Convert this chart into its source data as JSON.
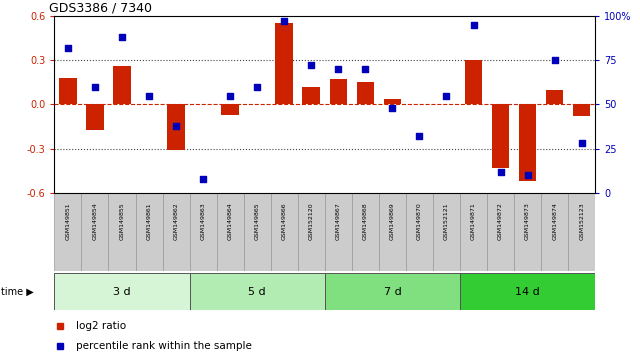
{
  "title": "GDS3386 / 7340",
  "samples": [
    "GSM149851",
    "GSM149854",
    "GSM149855",
    "GSM149861",
    "GSM149862",
    "GSM149863",
    "GSM149864",
    "GSM149865",
    "GSM149866",
    "GSM152120",
    "GSM149867",
    "GSM149868",
    "GSM149869",
    "GSM149870",
    "GSM152121",
    "GSM149871",
    "GSM149872",
    "GSM149873",
    "GSM149874",
    "GSM152123"
  ],
  "log2_ratio": [
    0.18,
    -0.17,
    0.26,
    0.0,
    -0.31,
    0.0,
    -0.07,
    0.0,
    0.55,
    0.12,
    0.17,
    0.15,
    0.04,
    0.0,
    0.0,
    0.3,
    -0.43,
    -0.52,
    0.1,
    -0.08
  ],
  "percentile_rank": [
    82,
    60,
    88,
    55,
    38,
    8,
    55,
    60,
    97,
    72,
    70,
    70,
    48,
    32,
    55,
    95,
    12,
    10,
    75,
    28
  ],
  "groups": [
    {
      "label": "3 d",
      "start": 0,
      "end": 5,
      "color": "#d6f5d6"
    },
    {
      "label": "5 d",
      "start": 5,
      "end": 10,
      "color": "#b3ecb3"
    },
    {
      "label": "7 d",
      "start": 10,
      "end": 15,
      "color": "#80e080"
    },
    {
      "label": "14 d",
      "start": 15,
      "end": 20,
      "color": "#33cc33"
    }
  ],
  "ylim": [
    -0.6,
    0.6
  ],
  "yticks_left": [
    -0.6,
    -0.3,
    0.0,
    0.3,
    0.6
  ],
  "yticks_right": [
    0,
    25,
    50,
    75,
    100
  ],
  "bar_color": "#cc2200",
  "dot_color": "#0000bb",
  "bg_color": "#ffffff",
  "hline_color": "#cc2200",
  "dotted_line_color": "#444444",
  "tick_label_color_left": "#cc2200",
  "tick_label_color_right": "#0000bb",
  "sample_box_color": "#cccccc",
  "sample_box_edge": "#999999"
}
